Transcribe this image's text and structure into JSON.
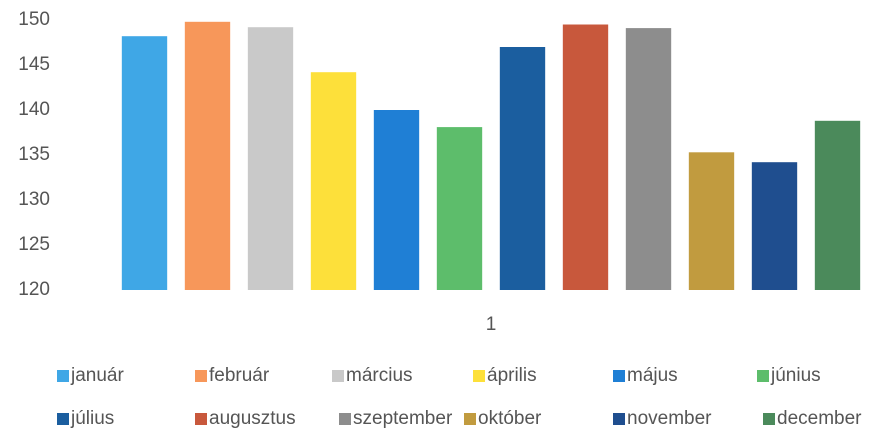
{
  "chart_data": {
    "type": "bar",
    "categories": [
      "1"
    ],
    "series": [
      {
        "name": "január",
        "color": "#3fa7e6",
        "values": [
          148.2
        ]
      },
      {
        "name": "február",
        "color": "#f7975a",
        "values": [
          149.8
        ]
      },
      {
        "name": "március",
        "color": "#c9c9c9",
        "values": [
          149.2
        ]
      },
      {
        "name": "április",
        "color": "#fde03a",
        "values": [
          144.2
        ]
      },
      {
        "name": "május",
        "color": "#1f7fd5",
        "values": [
          140
        ]
      },
      {
        "name": "június",
        "color": "#5dbd6b",
        "values": [
          138.1
        ]
      },
      {
        "name": "július",
        "color": "#1b5e9f",
        "values": [
          147
        ]
      },
      {
        "name": "augusztus",
        "color": "#c8583c",
        "values": [
          149.5
        ]
      },
      {
        "name": "szeptember",
        "color": "#8d8d8d",
        "values": [
          149.1
        ]
      },
      {
        "name": "október",
        "color": "#c19b3f",
        "values": [
          135.3
        ]
      },
      {
        "name": "november",
        "color": "#1f4e8f",
        "values": [
          134.2
        ]
      },
      {
        "name": "december",
        "color": "#4b8a5b",
        "values": [
          138.8
        ]
      }
    ],
    "ylim": [
      120,
      150
    ],
    "yticks": [
      120,
      125,
      130,
      135,
      140,
      145,
      150
    ],
    "grid": false,
    "legend": "bottom"
  }
}
